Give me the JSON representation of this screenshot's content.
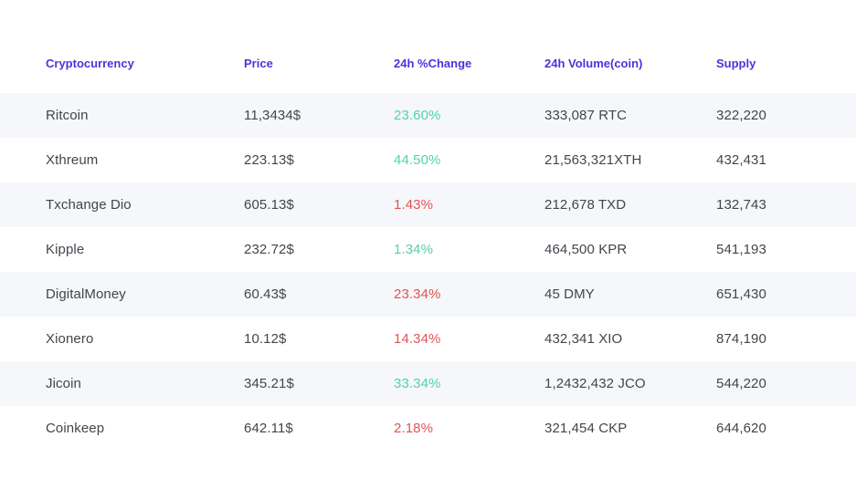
{
  "table": {
    "columns": [
      "Cryptocurrency",
      "Price",
      "24h %Change",
      "24h Volume(coin)",
      "Supply"
    ],
    "colors": {
      "header_text": "#4d33db",
      "positive_change": "#53d3a5",
      "negative_change": "#e05454",
      "body_text": "#41464c",
      "stripe_background": "#f5f7fa"
    },
    "rows": [
      {
        "name": "Ritcoin",
        "price": "11,3434$",
        "change": "23.60%",
        "direction": "up",
        "volume": "333,087 RTC",
        "supply": "322,220"
      },
      {
        "name": "Xthreum",
        "price": "223.13$",
        "change": "44.50%",
        "direction": "up",
        "volume": "21,563,321XTH",
        "supply": "432,431"
      },
      {
        "name": "Txchange Dio",
        "price": "605.13$",
        "change": "1.43%",
        "direction": "down",
        "volume": "212,678 TXD",
        "supply": "132,743"
      },
      {
        "name": "Kipple",
        "price": "232.72$",
        "change": "1.34%",
        "direction": "up",
        "volume": "464,500 KPR",
        "supply": "541,193"
      },
      {
        "name": "DigitalMoney",
        "price": "60.43$",
        "change": "23.34%",
        "direction": "down",
        "volume": "45 DMY",
        "supply": "651,430"
      },
      {
        "name": "Xionero",
        "price": "10.12$",
        "change": "14.34%",
        "direction": "down",
        "volume": "432,341 XIO",
        "supply": "874,190"
      },
      {
        "name": "Jicoin",
        "price": "345.21$",
        "change": "33.34%",
        "direction": "up",
        "volume": "1,2432,432 JCO",
        "supply": "544,220"
      },
      {
        "name": "Coinkeep",
        "price": "642.11$",
        "change": "2.18%",
        "direction": "down",
        "volume": "321,454 CKP",
        "supply": "644,620"
      }
    ]
  }
}
